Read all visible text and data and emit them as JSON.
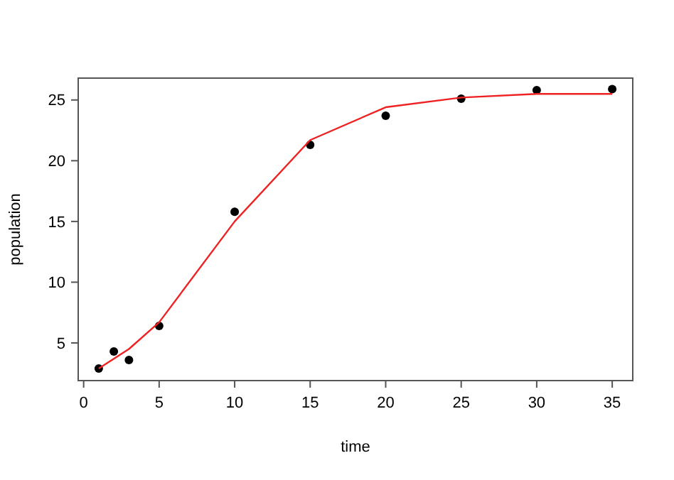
{
  "chart_data": {
    "type": "scatter",
    "xlabel": "time",
    "ylabel": "population",
    "xlim": [
      -0.36,
      36.36
    ],
    "ylim": [
      1.9,
      26.8
    ],
    "xticks": [
      0,
      5,
      10,
      15,
      20,
      25,
      30,
      35
    ],
    "yticks": [
      5,
      10,
      15,
      20,
      25
    ],
    "grid": false,
    "series": [
      {
        "color": "#000000",
        "marker": "circle",
        "x": [
          1,
          2,
          3,
          5,
          10,
          15,
          20,
          25,
          30,
          35
        ],
        "values": [
          2.9,
          4.3,
          3.6,
          6.4,
          15.8,
          21.3,
          23.7,
          25.1,
          25.8,
          25.9
        ]
      },
      {
        "type": "line",
        "color": "#ee2222",
        "marker": "none",
        "line_style": "solid",
        "x": [
          1,
          2,
          3,
          5,
          10,
          15,
          20,
          25,
          30,
          35
        ],
        "values": [
          2.9,
          3.7,
          4.5,
          6.7,
          15.0,
          21.7,
          24.4,
          25.2,
          25.5,
          25.5
        ]
      }
    ]
  }
}
